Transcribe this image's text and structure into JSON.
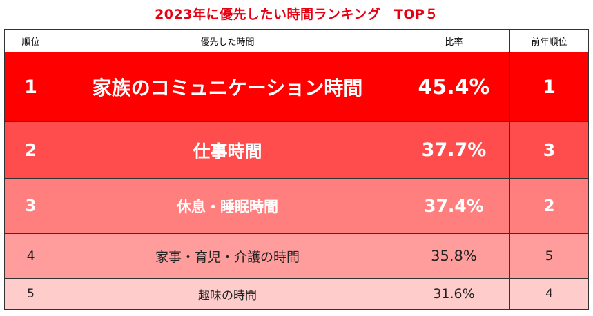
{
  "title": "2023年に優先したい時間ランキング　TOP５",
  "headers": {
    "rank": "順位",
    "item": "優先した時間",
    "ratio": "比率",
    "prev_rank": "前年順位"
  },
  "rows": [
    {
      "rank": "1",
      "item": "家族のコミュニケーション時間",
      "ratio": "45.4%",
      "prev_rank": "1",
      "color": "#ff0000"
    },
    {
      "rank": "2",
      "item": "仕事時間",
      "ratio": "37.7%",
      "prev_rank": "3",
      "color": "#ff4d4d"
    },
    {
      "rank": "3",
      "item": "休息・睡眠時間",
      "ratio": "37.4%",
      "prev_rank": "2",
      "color": "#ff7f7f"
    },
    {
      "rank": "4",
      "item": "家事・育児・介護の時間",
      "ratio": "35.8%",
      "prev_rank": "5",
      "color": "#ff9d9d"
    },
    {
      "rank": "5",
      "item": "趣味の時間",
      "ratio": "31.6%",
      "prev_rank": "4",
      "color": "#ffcccc"
    }
  ],
  "colors": {
    "title": "#e60012",
    "border": "#333333"
  }
}
